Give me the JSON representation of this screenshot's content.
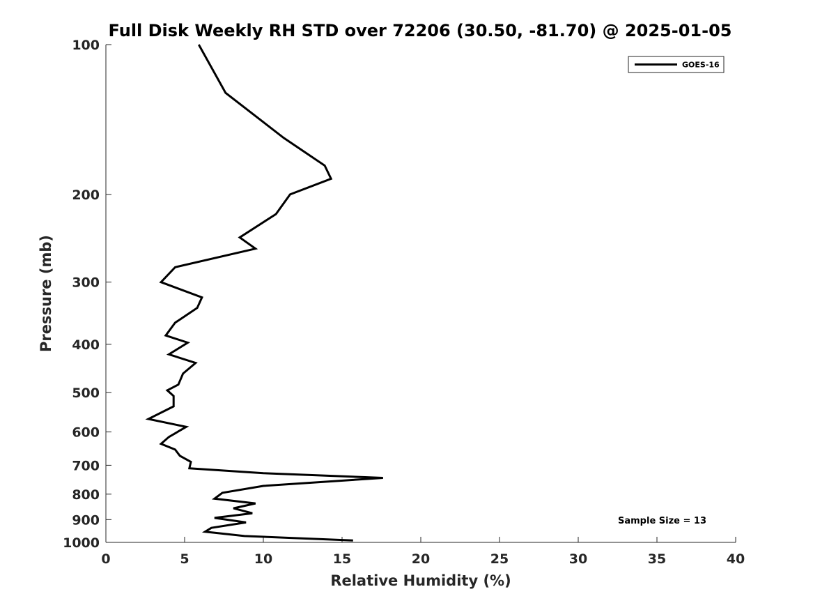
{
  "chart_data": {
    "type": "line",
    "title": "Full Disk Weekly RH STD over 72206 (30.50, -81.70) @ 2025-01-05",
    "xlabel": "Relative Humidity (%)",
    "ylabel": "Pressure (mb)",
    "xlim": [
      0,
      40
    ],
    "ylim": [
      100,
      1000
    ],
    "y_scale": "log",
    "y_reversed": true,
    "x_ticks": [
      0,
      5,
      10,
      15,
      20,
      25,
      30,
      35,
      40
    ],
    "y_ticks": [
      100,
      200,
      300,
      400,
      500,
      600,
      700,
      800,
      900,
      1000
    ],
    "grid": false,
    "legend": {
      "placement": "top-right",
      "entries": [
        "GOES-16"
      ]
    },
    "annotation": "Sample Size = 13",
    "series": [
      {
        "name": "GOES-16",
        "color": "#000000",
        "points": [
          [
            5.9,
            100
          ],
          [
            7.6,
            125
          ],
          [
            11.3,
            154
          ],
          [
            13.9,
            175
          ],
          [
            14.3,
            186
          ],
          [
            11.7,
            200
          ],
          [
            10.8,
            219
          ],
          [
            8.5,
            244
          ],
          [
            9.5,
            257
          ],
          [
            4.4,
            280
          ],
          [
            3.5,
            300
          ],
          [
            6.1,
            322
          ],
          [
            5.8,
            338
          ],
          [
            4.4,
            362
          ],
          [
            3.8,
            384
          ],
          [
            5.2,
            397
          ],
          [
            4.0,
            419
          ],
          [
            5.7,
            436
          ],
          [
            4.9,
            458
          ],
          [
            4.6,
            482
          ],
          [
            3.9,
            495
          ],
          [
            4.3,
            508
          ],
          [
            4.3,
            533
          ],
          [
            2.7,
            565
          ],
          [
            5.1,
            586
          ],
          [
            4.0,
            614
          ],
          [
            3.5,
            634
          ],
          [
            4.4,
            651
          ],
          [
            4.7,
            670
          ],
          [
            5.4,
            689
          ],
          [
            5.3,
            710
          ],
          [
            10.0,
            726
          ],
          [
            17.6,
            742
          ],
          [
            10.0,
            770
          ],
          [
            7.4,
            795
          ],
          [
            6.9,
            817
          ],
          [
            9.5,
            835
          ],
          [
            8.1,
            854
          ],
          [
            9.3,
            874
          ],
          [
            6.9,
            893
          ],
          [
            8.9,
            912
          ],
          [
            6.7,
            935
          ],
          [
            6.3,
            952
          ],
          [
            8.8,
            971
          ],
          [
            15.7,
            991
          ]
        ]
      }
    ]
  }
}
